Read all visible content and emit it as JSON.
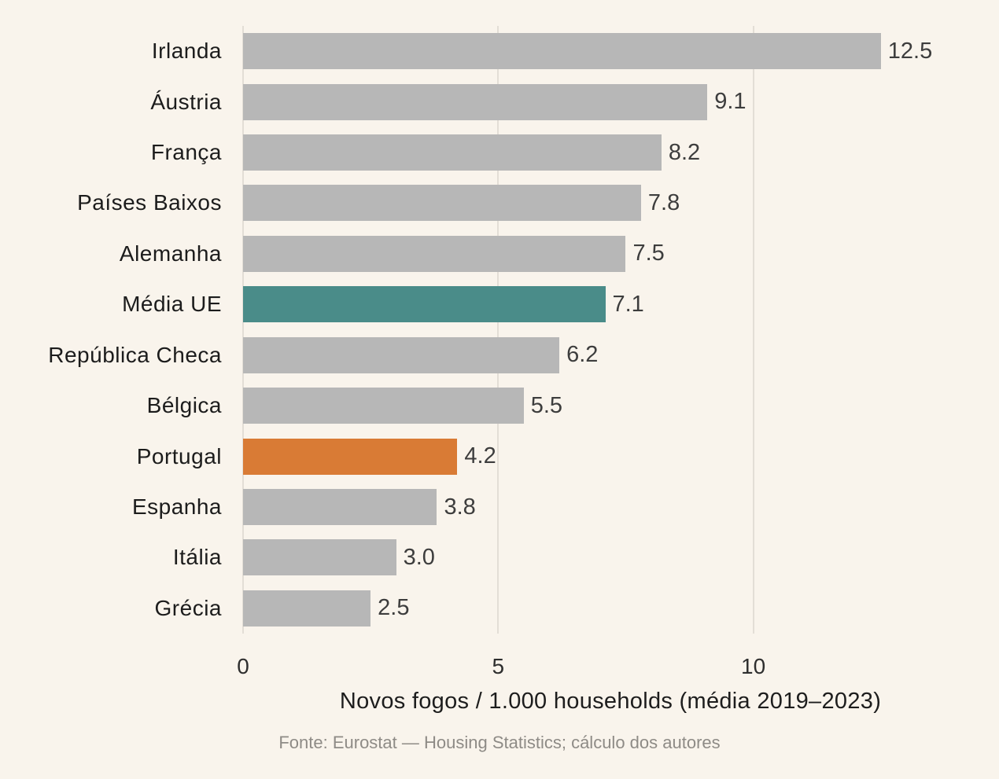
{
  "chart_data": {
    "type": "bar",
    "orientation": "horizontal",
    "xlabel": "Novos fogos / 1.000 households (média 2019–2023)",
    "source_note": "Fonte: Eurostat — Housing Statistics; cálculo dos autores",
    "xlim": [
      0,
      14.4
    ],
    "grid": "vertical, behind bars",
    "legend": "none",
    "xticks": [
      {
        "value": 0,
        "label": "0"
      },
      {
        "value": 5,
        "label": "5"
      },
      {
        "value": 10,
        "label": "10"
      }
    ],
    "colors": {
      "background": "#f9f4ec",
      "bar_default": "#b7b7b7",
      "bar_eu_average": "#4a8c89",
      "bar_portugal": "#d97b35",
      "gridline": "#e3ded6",
      "category_text": "#1c1c1c",
      "value_text": "#3d3d3d",
      "source_text": "#8e8b86"
    },
    "bars": [
      {
        "category": "Irlanda",
        "value": 12.5,
        "label": "12.5",
        "color_key": "bar_default"
      },
      {
        "category": "Áustria",
        "value": 9.1,
        "label": "9.1",
        "color_key": "bar_default"
      },
      {
        "category": "França",
        "value": 8.2,
        "label": "8.2",
        "color_key": "bar_default"
      },
      {
        "category": "Países Baixos",
        "value": 7.8,
        "label": "7.8",
        "color_key": "bar_default"
      },
      {
        "category": "Alemanha",
        "value": 7.5,
        "label": "7.5",
        "color_key": "bar_default"
      },
      {
        "category": "Média UE",
        "value": 7.1,
        "label": "7.1",
        "color_key": "bar_eu_average"
      },
      {
        "category": "República Checa",
        "value": 6.2,
        "label": "6.2",
        "color_key": "bar_default"
      },
      {
        "category": "Bélgica",
        "value": 5.5,
        "label": "5.5",
        "color_key": "bar_default"
      },
      {
        "category": "Portugal",
        "value": 4.2,
        "label": "4.2",
        "color_key": "bar_portugal"
      },
      {
        "category": "Espanha",
        "value": 3.8,
        "label": "3.8",
        "color_key": "bar_default"
      },
      {
        "category": "Itália",
        "value": 3.0,
        "label": "3.0",
        "color_key": "bar_default"
      },
      {
        "category": "Grécia",
        "value": 2.5,
        "label": "2.5",
        "color_key": "bar_default"
      }
    ]
  }
}
